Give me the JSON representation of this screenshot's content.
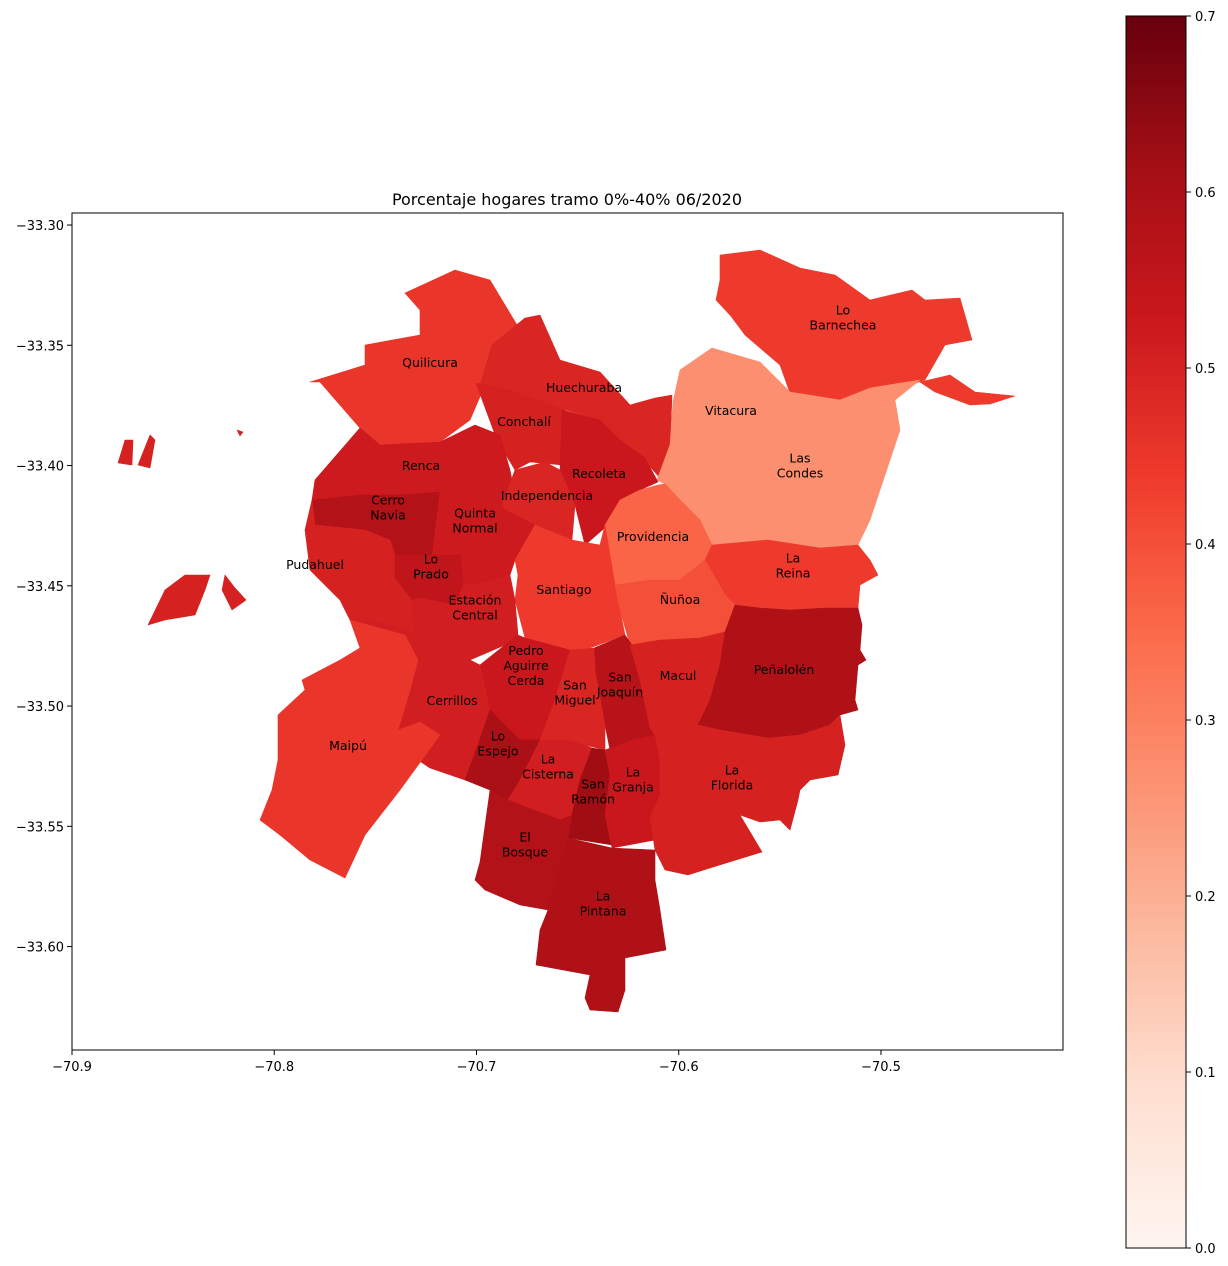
{
  "chart_data": {
    "type": "choropleth",
    "title": "Porcentaje hogares tramo 0%-40% 06/2020",
    "xlabel": "",
    "ylabel": "",
    "xlim": [
      -70.9,
      -70.41
    ],
    "ylim": [
      -33.643,
      -33.295
    ],
    "xticks": [
      -70.9,
      -70.8,
      -70.7,
      -70.6,
      -70.5
    ],
    "xtick_labels": [
      "−70.9",
      "−70.8",
      "−70.7",
      "−70.6",
      "−70.5"
    ],
    "yticks": [
      -33.3,
      -33.35,
      -33.4,
      -33.45,
      -33.5,
      -33.55,
      -33.6
    ],
    "ytick_labels": [
      "−33.30",
      "−33.35",
      "−33.40",
      "−33.45",
      "−33.50",
      "−33.55",
      "−33.60"
    ],
    "colorbar": {
      "min": 0.0,
      "max": 0.7,
      "ticks": [
        0.0,
        0.1,
        0.2,
        0.3,
        0.4,
        0.5,
        0.6,
        0.7
      ],
      "tick_labels": [
        "0.0",
        "0.1",
        "0.2",
        "0.3",
        "0.4",
        "0.5",
        "0.6",
        "0.7"
      ],
      "colormap": "Reds",
      "stops": [
        "#fff5f0",
        "#fee0d2",
        "#fcbba1",
        "#fc9272",
        "#fb6a4a",
        "#ef3b2c",
        "#cb181d",
        "#a50f15",
        "#67000d"
      ]
    },
    "regions": [
      {
        "name": "Lo Barnechea",
        "label": "Lo\nBarnechea",
        "value": 0.44
      },
      {
        "name": "Quilicura",
        "label": "Quilicura",
        "value": 0.45
      },
      {
        "name": "Huechuraba",
        "label": "Huechuraba",
        "value": 0.49
      },
      {
        "name": "Vitacura",
        "label": "Vitacura",
        "value": 0.27
      },
      {
        "name": "Conchalí",
        "label": "Conchalí",
        "value": 0.5
      },
      {
        "name": "Renca",
        "label": "Renca",
        "value": 0.52
      },
      {
        "name": "Recoleta",
        "label": "Recoleta",
        "value": 0.53
      },
      {
        "name": "Las Condes",
        "label": "Las\nCondes",
        "value": 0.27
      },
      {
        "name": "Cerro Navia",
        "label": "Cerro\nNavia",
        "value": 0.58
      },
      {
        "name": "Independencia",
        "label": "Independencia",
        "value": 0.49
      },
      {
        "name": "Quinta Normal",
        "label": "Quinta\nNormal",
        "value": 0.52
      },
      {
        "name": "Providencia",
        "label": "Providencia",
        "value": 0.36
      },
      {
        "name": "Pudahuel",
        "label": "Pudahuel",
        "value": 0.5
      },
      {
        "name": "Lo Prado",
        "label": "Lo\nPrado",
        "value": 0.55
      },
      {
        "name": "La Reina",
        "label": "La\nReina",
        "value": 0.44
      },
      {
        "name": "Santiago",
        "label": "Santiago",
        "value": 0.44
      },
      {
        "name": "Estación Central",
        "label": "Estación\nCentral",
        "value": 0.51
      },
      {
        "name": "Ñuñoa",
        "label": "Ñuñoa",
        "value": 0.4
      },
      {
        "name": "Pedro Aguirre Cerda",
        "label": "Pedro\nAguirre\nCerda",
        "value": 0.53
      },
      {
        "name": "San Joaquín",
        "label": "San\nJoaquín",
        "value": 0.57
      },
      {
        "name": "Macul",
        "label": "Macul",
        "value": 0.5
      },
      {
        "name": "Peñalolén",
        "label": "Peñalolén",
        "value": 0.59
      },
      {
        "name": "San Miguel",
        "label": "San\nMiguel",
        "value": 0.49
      },
      {
        "name": "Cerrillos",
        "label": "Cerrillos",
        "value": 0.51
      },
      {
        "name": "Maipú",
        "label": "Maipú",
        "value": 0.45
      },
      {
        "name": "Lo Espejo",
        "label": "Lo\nEspejo",
        "value": 0.6
      },
      {
        "name": "La Cisterna",
        "label": "La\nCisterna",
        "value": 0.51
      },
      {
        "name": "San Ramón",
        "label": "San\nRamón",
        "value": 0.62
      },
      {
        "name": "La Granja",
        "label": "La\nGranja",
        "value": 0.53
      },
      {
        "name": "La Florida",
        "label": "La\nFlorida",
        "value": 0.5
      },
      {
        "name": "El Bosque",
        "label": "El\nBosque",
        "value": 0.58
      },
      {
        "name": "La Pintana",
        "label": "La\nPintana",
        "value": 0.59
      }
    ]
  }
}
